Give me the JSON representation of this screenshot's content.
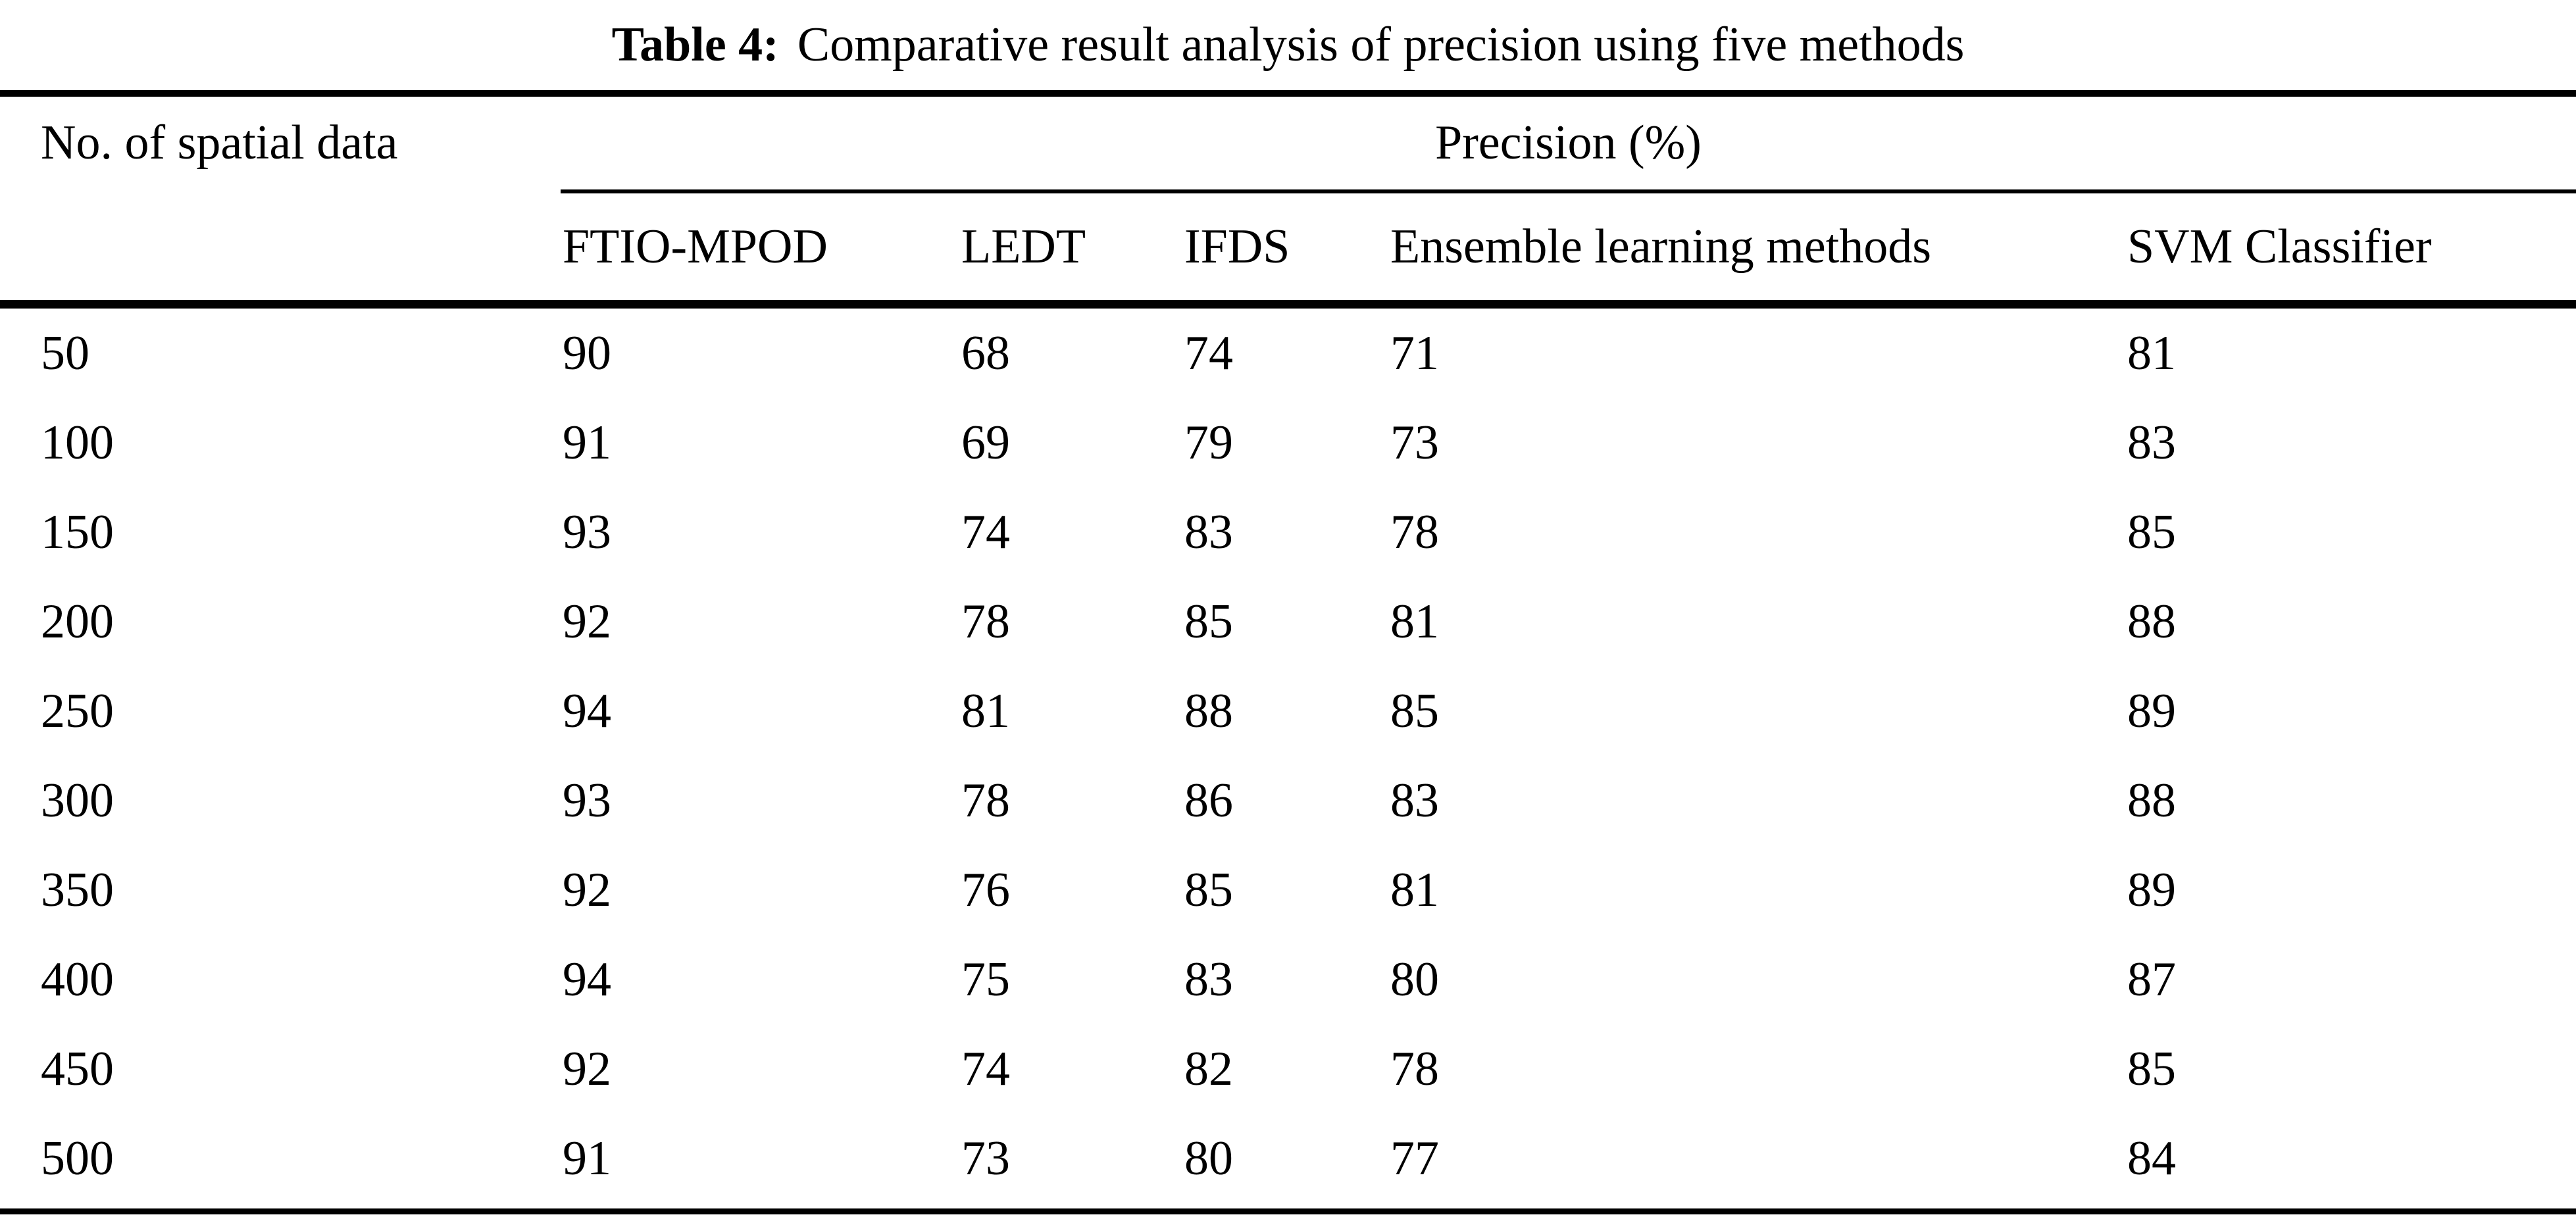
{
  "title": {
    "label": "Table 4:",
    "text": "Comparative result analysis of precision using five methods"
  },
  "table": {
    "stub_header": "No. of spatial data",
    "span_header": "Precision (%)",
    "columns": [
      "FTIO-MPOD",
      "LEDT",
      "IFDS",
      "Ensemble learning methods",
      "SVM Classifier"
    ],
    "rows": [
      {
        "n": "50",
        "values": [
          "90",
          "68",
          "74",
          "71",
          "81"
        ]
      },
      {
        "n": "100",
        "values": [
          "91",
          "69",
          "79",
          "73",
          "83"
        ]
      },
      {
        "n": "150",
        "values": [
          "93",
          "74",
          "83",
          "78",
          "85"
        ]
      },
      {
        "n": "200",
        "values": [
          "92",
          "78",
          "85",
          "81",
          "88"
        ]
      },
      {
        "n": "250",
        "values": [
          "94",
          "81",
          "88",
          "85",
          "89"
        ]
      },
      {
        "n": "300",
        "values": [
          "93",
          "78",
          "86",
          "83",
          "88"
        ]
      },
      {
        "n": "350",
        "values": [
          "92",
          "76",
          "85",
          "81",
          "89"
        ]
      },
      {
        "n": "400",
        "values": [
          "94",
          "75",
          "83",
          "80",
          "87"
        ]
      },
      {
        "n": "450",
        "values": [
          "92",
          "74",
          "82",
          "78",
          "85"
        ]
      },
      {
        "n": "500",
        "values": [
          "91",
          "73",
          "80",
          "77",
          "84"
        ]
      }
    ]
  },
  "colors": {
    "text": "#000000",
    "background": "#ffffff",
    "rule": "#000000"
  }
}
